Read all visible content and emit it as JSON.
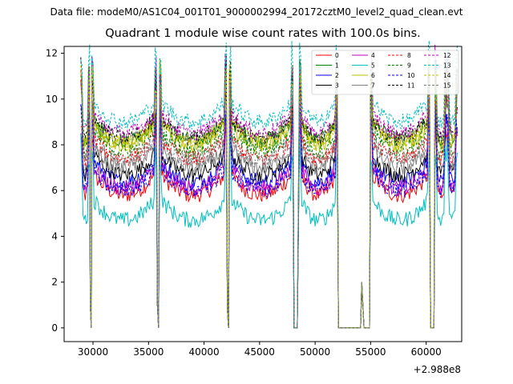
{
  "suptitle": "Data file: modeM0/AS1C04_001T01_9000002994_20172cztM0_level2_quad_clean.evt",
  "chart_data": {
    "type": "line",
    "title": "Quadrant 1 module wise count rates with 100.0s bins.",
    "xlabel": "",
    "ylabel": "",
    "x_offset_label": "+2.988e8",
    "xlim": [
      27400,
      63200
    ],
    "ylim": [
      -0.6,
      12.3
    ],
    "xticks": [
      30000,
      35000,
      40000,
      45000,
      50000,
      55000,
      60000
    ],
    "yticks": [
      0,
      2,
      4,
      6,
      8,
      10,
      12
    ],
    "segments": [
      [
        28900,
        29700
      ],
      [
        29900,
        35700
      ],
      [
        36000,
        42000
      ],
      [
        42300,
        48000
      ],
      [
        48600,
        52000
      ],
      [
        55000,
        60300
      ],
      [
        60800,
        61800
      ],
      [
        61900,
        62800
      ]
    ],
    "dips": [
      {
        "x": [
          29750,
          29850
        ],
        "y": [
          1.0,
          0.0
        ]
      },
      {
        "x": [
          35800,
          35900
        ],
        "y": [
          1.0,
          0.0
        ]
      },
      {
        "x": [
          42100,
          42200
        ],
        "y": [
          0.8,
          0.0
        ]
      },
      {
        "x": [
          48100,
          48400
        ],
        "y": [
          0.0,
          0.0
        ]
      },
      {
        "x": [
          52100,
          54100
        ],
        "y": [
          0.0,
          0.0
        ]
      },
      {
        "x": [
          54200,
          54300
        ],
        "y": [
          2.0,
          1.0
        ]
      },
      {
        "x": [
          54400,
          54900
        ],
        "y": [
          0.0,
          0.0
        ]
      },
      {
        "x": [
          60400,
          60700
        ],
        "y": [
          0.0,
          0.0
        ]
      }
    ],
    "series": [
      {
        "name": "0",
        "color": "#ff0000",
        "dash": "solid",
        "level": 6.4
      },
      {
        "name": "1",
        "color": "#008000",
        "dash": "solid",
        "level": 8.8
      },
      {
        "name": "2",
        "color": "#0000ff",
        "dash": "solid",
        "level": 7.0
      },
      {
        "name": "3",
        "color": "#000000",
        "dash": "solid",
        "level": 7.3
      },
      {
        "name": "4",
        "color": "#bf00bf",
        "dash": "solid",
        "level": 6.7
      },
      {
        "name": "5",
        "color": "#00bfbf",
        "dash": "solid",
        "level": 5.3
      },
      {
        "name": "6",
        "color": "#bfbf00",
        "dash": "solid",
        "level": 8.6
      },
      {
        "name": "7",
        "color": "#808080",
        "dash": "solid",
        "level": 7.6
      },
      {
        "name": "8",
        "color": "#ff0000",
        "dash": "dashed",
        "level": 8.0
      },
      {
        "name": "9",
        "color": "#008000",
        "dash": "dashed",
        "level": 8.3
      },
      {
        "name": "10",
        "color": "#0000ff",
        "dash": "dashed",
        "level": 6.6
      },
      {
        "name": "11",
        "color": "#000000",
        "dash": "dashed",
        "level": 8.9
      },
      {
        "name": "12",
        "color": "#bf00bf",
        "dash": "dashed",
        "level": 9.1
      },
      {
        "name": "13",
        "color": "#00bfbf",
        "dash": "dashed",
        "level": 9.6
      },
      {
        "name": "14",
        "color": "#bfbf00",
        "dash": "dashed",
        "level": 8.7
      },
      {
        "name": "15",
        "color": "#808080",
        "dash": "dashed",
        "level": 7.9
      }
    ],
    "legend_location": "upper-right"
  }
}
